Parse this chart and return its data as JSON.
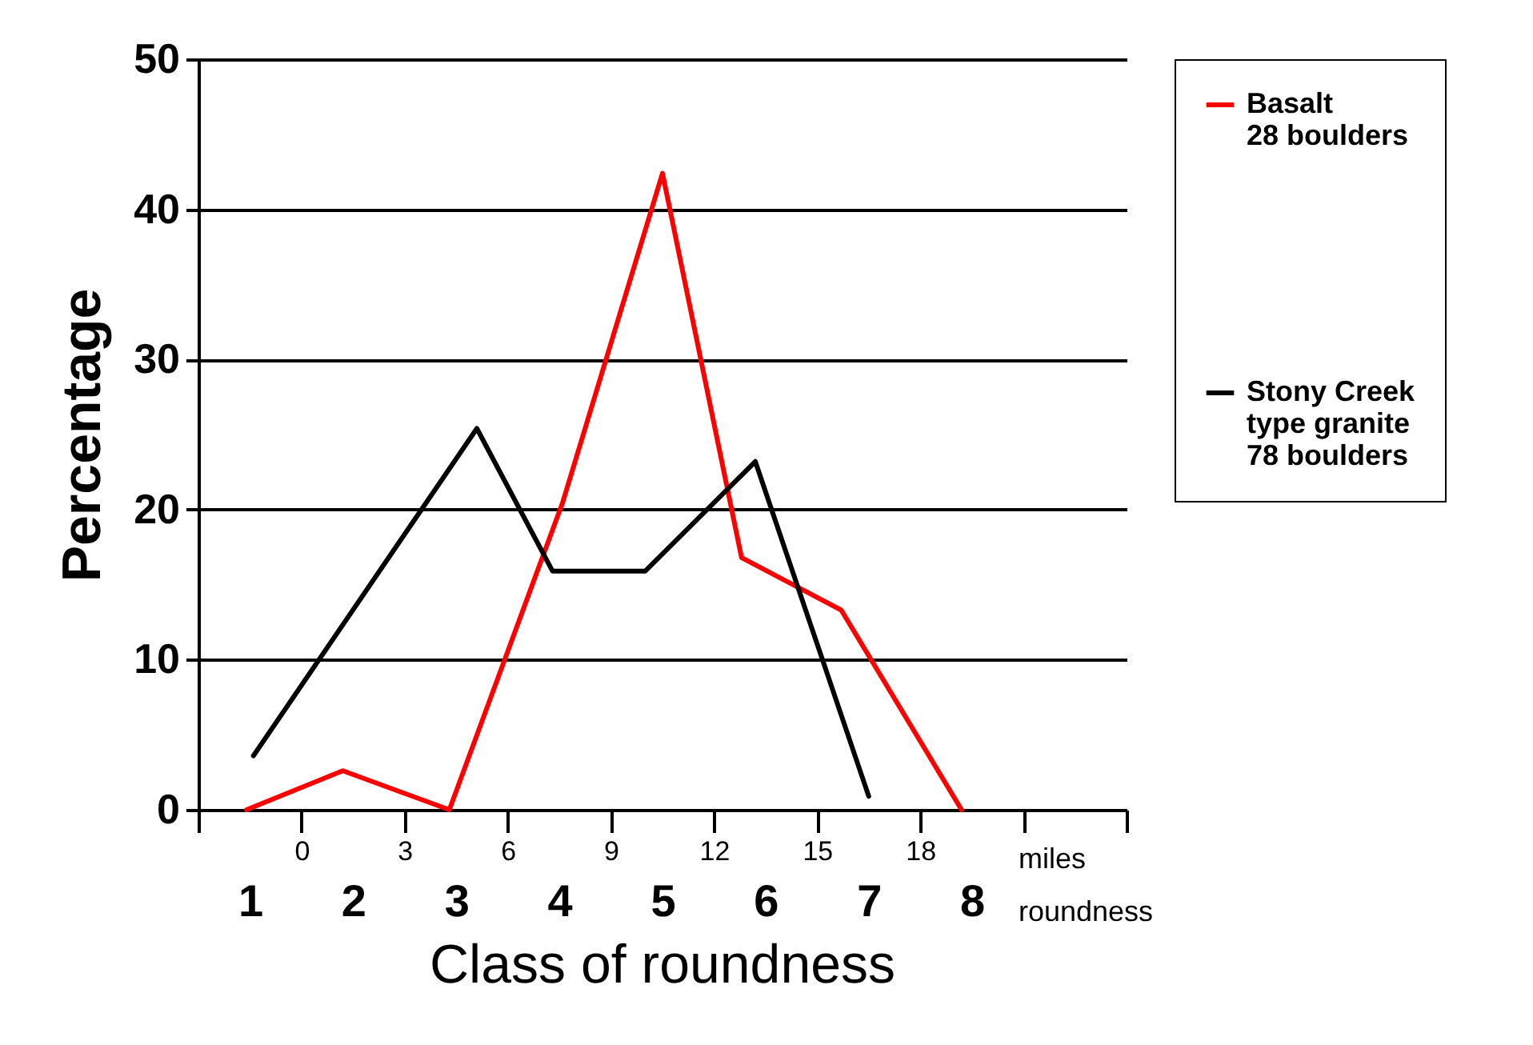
{
  "chart_data": {
    "type": "line",
    "xlabel": "miles",
    "ylabel": "Percentage",
    "x2label": "roundness",
    "annotations": [
      "Class of roundness"
    ],
    "xlim": [
      -3,
      24
    ],
    "xticks": [
      {
        "value": -3,
        "label": null
      },
      0,
      3,
      6,
      9,
      12,
      15,
      18,
      {
        "value": 21,
        "label": null
      },
      {
        "value": 24,
        "label": null
      }
    ],
    "x2lim": [
      0.5,
      9.5
    ],
    "x2ticks": [
      1,
      2,
      3,
      4,
      5,
      6,
      7,
      8
    ],
    "ylim": [
      0,
      50
    ],
    "yticks": [
      0,
      10,
      20,
      30,
      40,
      50
    ],
    "grid": "y",
    "legend": "right",
    "series": [
      {
        "name": "Basalt\n28 boulders",
        "color": "#ff0000",
        "x": [
          -1.6,
          1.2,
          4.3,
          7.6,
          10.5,
          12.8,
          15.7,
          19.2
        ],
        "values": [
          0,
          2.6,
          0,
          20.5,
          42.4,
          16.8,
          13.3,
          0
        ]
      },
      {
        "name": "Stony Creek\ntype granite\n78 boulders",
        "color": "#000000",
        "x": [
          -1.4,
          5.1,
          7.3,
          10,
          13.2,
          16.5
        ],
        "values": [
          3.6,
          25.4,
          15.9,
          15.9,
          23.2,
          0.9
        ]
      }
    ]
  }
}
